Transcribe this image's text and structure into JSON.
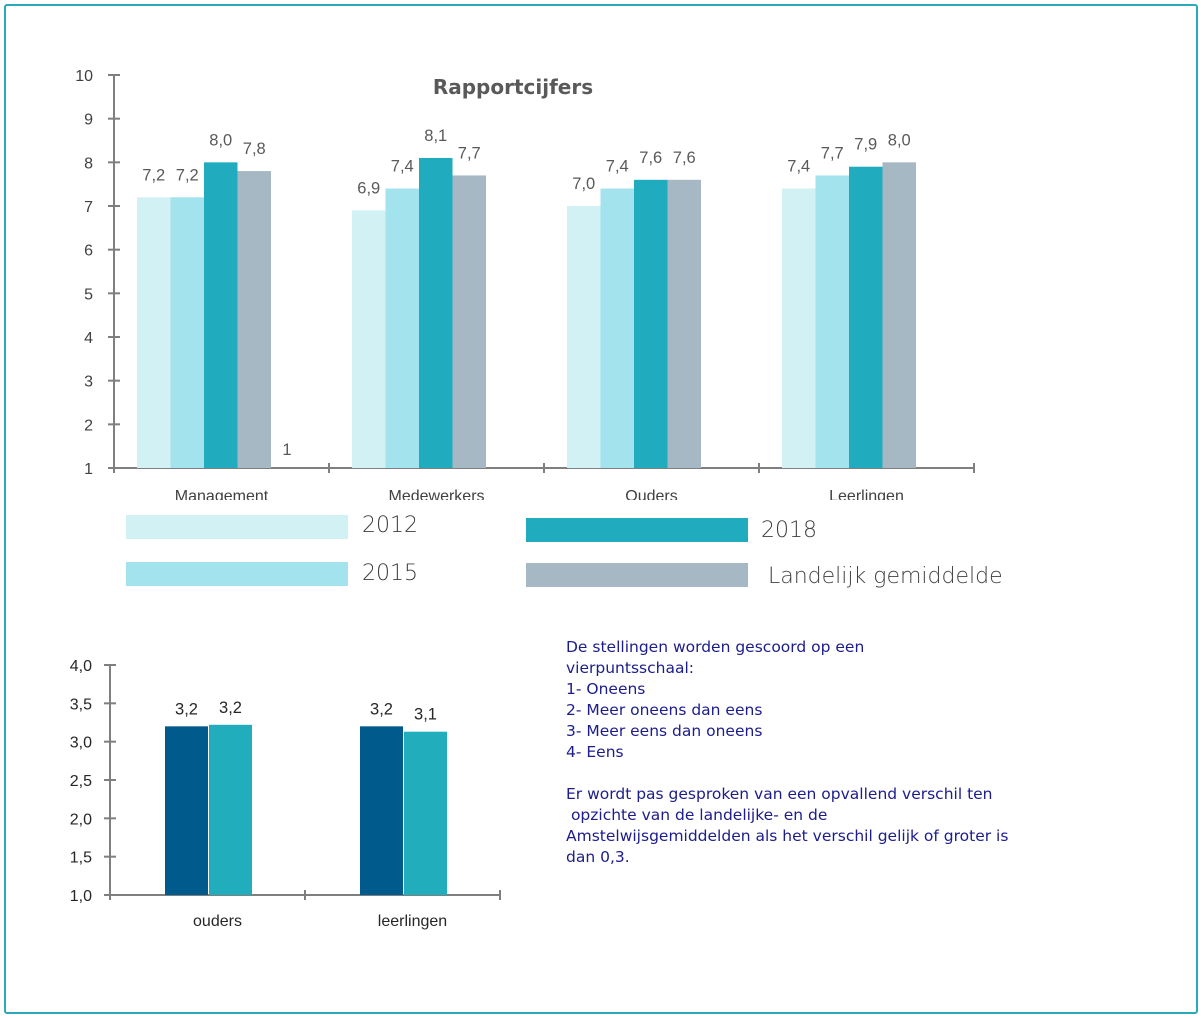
{
  "colors": {
    "frame": "#2aa9b8",
    "axis": "#7f7f7f",
    "s2012": "#d2f1f5",
    "s2015": "#a3e3ed",
    "s2018": "#20abbe",
    "landelijk": "#a6b8c4",
    "dark_blue": "#005b8c",
    "teal": "#22adbd",
    "note_text": "#1c1c8c"
  },
  "chart_data": [
    {
      "type": "bar",
      "title": "Rapportcijfers",
      "categories": [
        "Management",
        "Medewerkers",
        "Ouders",
        "Leerlingen"
      ],
      "series": [
        {
          "name": "2012",
          "values": [
            7.2,
            6.9,
            7.0,
            7.4
          ],
          "labels": [
            "7,2",
            "6,9",
            "7,0",
            "7,4"
          ]
        },
        {
          "name": "2015",
          "values": [
            7.2,
            7.4,
            7.4,
            7.7
          ],
          "labels": [
            "7,2",
            "7,4",
            "7,4",
            "7,7"
          ]
        },
        {
          "name": "2018",
          "values": [
            8.0,
            8.1,
            7.6,
            7.9
          ],
          "labels": [
            "8,0",
            "8,1",
            "7,6",
            "7,9"
          ]
        },
        {
          "name": "Landelijk gemiddelde",
          "values": [
            7.8,
            7.7,
            7.6,
            8.0
          ],
          "labels": [
            "7,8",
            "7,7",
            "7,6",
            "8,0"
          ]
        }
      ],
      "stray_label": "1",
      "ylim": [
        1,
        10
      ],
      "yticks": [
        "1",
        "2",
        "3",
        "4",
        "5",
        "6",
        "7",
        "8",
        "9",
        "10"
      ],
      "legend_placement": "bottom",
      "grid": false
    },
    {
      "type": "bar",
      "categories": [
        "ouders",
        "leerlingen"
      ],
      "series": [
        {
          "values": [
            3.2,
            3.2
          ],
          "labels": [
            "3,2",
            "3,2"
          ]
        },
        {
          "values": [
            3.22,
            3.13
          ],
          "labels": [
            "3,2",
            "3,1"
          ]
        }
      ],
      "ylim": [
        1.0,
        4.0
      ],
      "yticks": [
        "1,0",
        "1,5",
        "2,0",
        "2,5",
        "3,0",
        "3,5",
        "4,0"
      ],
      "grid": false
    }
  ],
  "note": {
    "lines": [
      "De stellingen worden gescoord op een",
      "vierpuntsschaal:",
      "1- Oneens",
      "2- Meer oneens dan eens",
      "3- Meer eens dan oneens",
      "4- Eens",
      "",
      "Er wordt pas gesproken van een opvallend verschil ten",
      " opzichte van de landelijke- en de",
      "Amstelwijsgemiddelden als het verschil gelijk of groter is",
      "dan 0,3."
    ]
  }
}
